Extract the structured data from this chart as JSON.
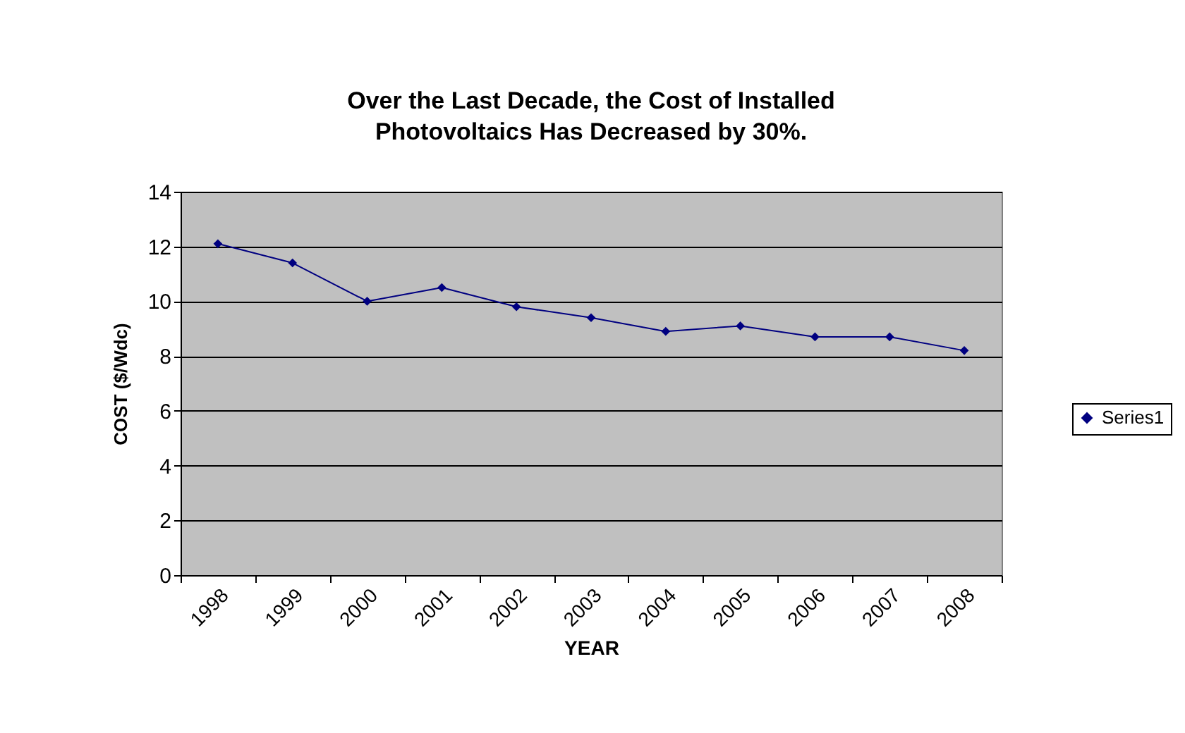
{
  "chart_data": {
    "type": "line",
    "title": "Over the Last Decade, the Cost of Installed Photovoltaics Has Decreased by 30%.",
    "xlabel": "YEAR",
    "ylabel": "COST ($/Wdc)",
    "categories": [
      "1998",
      "1999",
      "2000",
      "2001",
      "2002",
      "2003",
      "2004",
      "2005",
      "2006",
      "2007",
      "2008"
    ],
    "series": [
      {
        "name": "Series1",
        "color": "#000080",
        "values": [
          12.1,
          11.4,
          10.0,
          10.5,
          9.8,
          9.4,
          8.9,
          9.1,
          8.7,
          8.7,
          8.2
        ]
      }
    ],
    "ylim": [
      0,
      14
    ],
    "yticks": [
      0,
      2,
      4,
      6,
      8,
      10,
      12,
      14
    ],
    "grid": "y",
    "legend": "right",
    "marker": "diamond",
    "line_style": "solid"
  }
}
